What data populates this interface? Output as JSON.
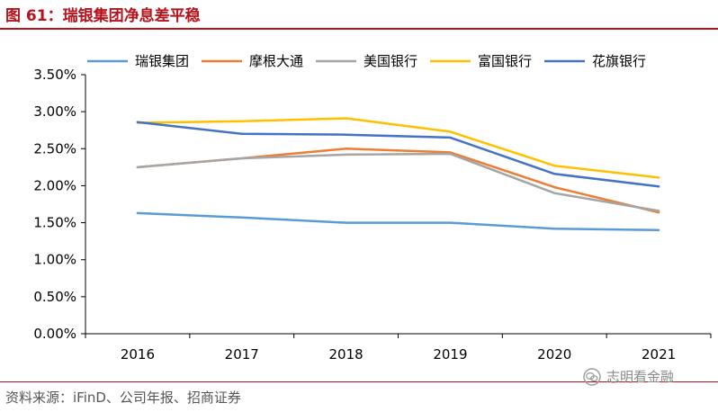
{
  "figure": {
    "title": "图 61：瑞银集团净息差平稳",
    "source": "资料来源：iFinD、公司年报、招商证券",
    "watermark": "志明看金融"
  },
  "chart_data": {
    "type": "line",
    "x": [
      "2016",
      "2017",
      "2018",
      "2019",
      "2020",
      "2021"
    ],
    "ylim": [
      0,
      0.035
    ],
    "yticks": [
      "0.00%",
      "0.50%",
      "1.00%",
      "1.50%",
      "2.00%",
      "2.50%",
      "3.00%",
      "3.50%"
    ],
    "grid": false,
    "legend_position": "top",
    "series": [
      {
        "name": "瑞银集团",
        "color": "#5b9bd5",
        "values": [
          0.0163,
          0.0157,
          0.015,
          0.015,
          0.0142,
          0.014
        ]
      },
      {
        "name": "摩根大通",
        "color": "#ed7d31",
        "values": [
          0.0225,
          0.0237,
          0.025,
          0.0245,
          0.0198,
          0.0164
        ]
      },
      {
        "name": "美国银行",
        "color": "#a5a5a5",
        "values": [
          0.0225,
          0.0237,
          0.0242,
          0.0243,
          0.019,
          0.0166
        ]
      },
      {
        "name": "富国银行",
        "color": "#ffc000",
        "values": [
          0.0285,
          0.0287,
          0.0291,
          0.0273,
          0.0227,
          0.0211
        ]
      },
      {
        "name": "花旗银行",
        "color": "#4472c4",
        "values": [
          0.0286,
          0.027,
          0.0269,
          0.0265,
          0.0216,
          0.0199
        ]
      }
    ]
  }
}
